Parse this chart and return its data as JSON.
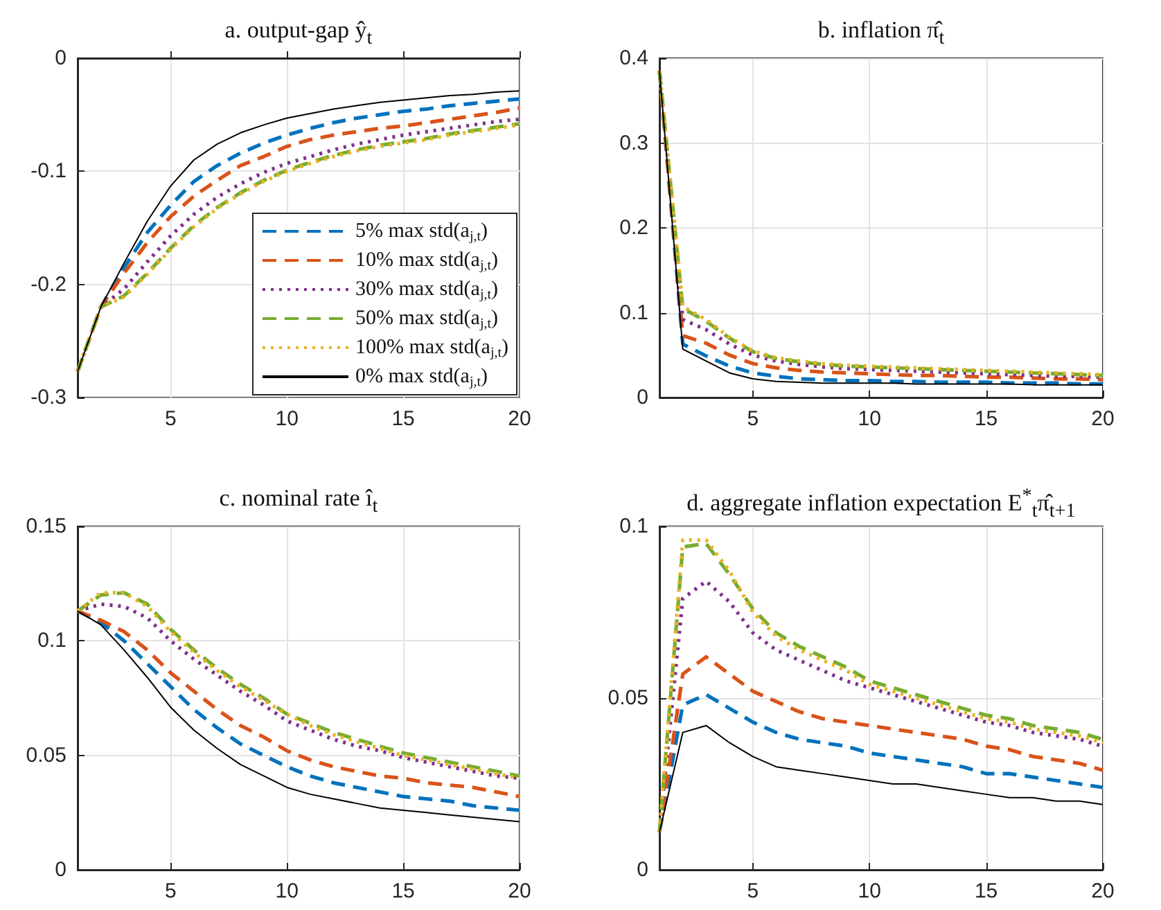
{
  "chart_data": [
    {
      "type": "line",
      "title": "a. output-gap ŷ$_{t}$",
      "x": [
        1,
        2,
        3,
        4,
        5,
        6,
        7,
        8,
        9,
        10,
        11,
        12,
        13,
        14,
        15,
        16,
        17,
        18,
        19,
        20
      ],
      "xlim": [
        1,
        20
      ],
      "xticks": [
        5,
        10,
        15,
        20
      ],
      "ylim": [
        -0.3,
        0
      ],
      "yticks": [
        -0.3,
        -0.2,
        -0.1,
        0
      ],
      "grid": true,
      "legend": "bottom right",
      "series": [
        {
          "name": "5% max std(a$_{j,t}$)",
          "color": "#0072bd",
          "line_style": "dashed",
          "values": [
            -0.277,
            -0.22,
            -0.185,
            -0.154,
            -0.13,
            -0.109,
            -0.095,
            -0.084,
            -0.075,
            -0.068,
            -0.062,
            -0.057,
            -0.053,
            -0.05,
            -0.047,
            -0.045,
            -0.042,
            -0.04,
            -0.038,
            -0.036
          ]
        },
        {
          "name": "10% max std(a$_{j,t}$)",
          "color": "#d95319",
          "line_style": "dashed",
          "values": [
            -0.277,
            -0.22,
            -0.19,
            -0.163,
            -0.14,
            -0.122,
            -0.108,
            -0.095,
            -0.087,
            -0.078,
            -0.072,
            -0.068,
            -0.065,
            -0.062,
            -0.06,
            -0.057,
            -0.054,
            -0.051,
            -0.048,
            -0.044
          ]
        },
        {
          "name": "30% max std(a$_{j,t}$)",
          "color": "#7e2f8e",
          "line_style": "dotted",
          "values": [
            -0.277,
            -0.22,
            -0.204,
            -0.18,
            -0.157,
            -0.138,
            -0.123,
            -0.111,
            -0.101,
            -0.093,
            -0.087,
            -0.081,
            -0.076,
            -0.072,
            -0.068,
            -0.065,
            -0.062,
            -0.059,
            -0.056,
            -0.054
          ]
        },
        {
          "name": "50% max std(a$_{j,t}$)",
          "color": "#77ac30",
          "line_style": "dashed",
          "values": [
            -0.277,
            -0.22,
            -0.21,
            -0.19,
            -0.168,
            -0.148,
            -0.132,
            -0.119,
            -0.108,
            -0.099,
            -0.092,
            -0.086,
            -0.081,
            -0.077,
            -0.074,
            -0.071,
            -0.067,
            -0.064,
            -0.061,
            -0.058
          ]
        },
        {
          "name": "100% max std(a$_{j,t}$)",
          "color": "#edb120",
          "line_style": "dotted",
          "values": [
            -0.277,
            -0.22,
            -0.211,
            -0.191,
            -0.169,
            -0.149,
            -0.133,
            -0.12,
            -0.109,
            -0.1,
            -0.093,
            -0.087,
            -0.082,
            -0.078,
            -0.075,
            -0.072,
            -0.068,
            -0.065,
            -0.062,
            -0.059
          ]
        },
        {
          "name": "0% max std(a$_{j,t}$)",
          "color": "#000000",
          "line_style": "solid",
          "values": [
            -0.277,
            -0.22,
            -0.181,
            -0.144,
            -0.113,
            -0.09,
            -0.076,
            -0.066,
            -0.059,
            -0.053,
            -0.049,
            -0.045,
            -0.042,
            -0.039,
            -0.037,
            -0.035,
            -0.033,
            -0.032,
            -0.03,
            -0.029
          ]
        }
      ]
    },
    {
      "type": "line",
      "title": "b. inflation π̂$_{t}$",
      "x": [
        1,
        2,
        3,
        4,
        5,
        6,
        7,
        8,
        9,
        10,
        11,
        12,
        13,
        14,
        15,
        16,
        17,
        18,
        19,
        20
      ],
      "xlim": [
        1,
        20
      ],
      "xticks": [
        5,
        10,
        15,
        20
      ],
      "ylim": [
        0,
        0.4
      ],
      "yticks": [
        0,
        0.1,
        0.2,
        0.3,
        0.4
      ],
      "grid": true,
      "series": [
        {
          "color": "#0072bd",
          "line_style": "dashed",
          "values": [
            0.385,
            0.063,
            0.049,
            0.037,
            0.029,
            0.025,
            0.022,
            0.021,
            0.02,
            0.02,
            0.019,
            0.019,
            0.018,
            0.018,
            0.018,
            0.017,
            0.017,
            0.017,
            0.016,
            0.016
          ]
        },
        {
          "color": "#d95319",
          "line_style": "dashed",
          "values": [
            0.385,
            0.073,
            0.064,
            0.05,
            0.04,
            0.035,
            0.032,
            0.03,
            0.029,
            0.028,
            0.027,
            0.026,
            0.026,
            0.025,
            0.024,
            0.024,
            0.023,
            0.022,
            0.022,
            0.021
          ]
        },
        {
          "color": "#7e2f8e",
          "line_style": "dotted",
          "values": [
            0.385,
            0.092,
            0.08,
            0.063,
            0.05,
            0.043,
            0.039,
            0.036,
            0.034,
            0.033,
            0.032,
            0.031,
            0.03,
            0.029,
            0.028,
            0.027,
            0.026,
            0.025,
            0.025,
            0.024
          ]
        },
        {
          "color": "#77ac30",
          "line_style": "dashed",
          "values": [
            0.385,
            0.105,
            0.09,
            0.07,
            0.054,
            0.046,
            0.042,
            0.039,
            0.037,
            0.036,
            0.035,
            0.034,
            0.033,
            0.032,
            0.031,
            0.03,
            0.029,
            0.028,
            0.027,
            0.026
          ]
        },
        {
          "color": "#edb120",
          "line_style": "dotted",
          "values": [
            0.385,
            0.107,
            0.092,
            0.071,
            0.055,
            0.047,
            0.043,
            0.04,
            0.038,
            0.037,
            0.036,
            0.035,
            0.034,
            0.033,
            0.032,
            0.031,
            0.03,
            0.029,
            0.028,
            0.027
          ]
        },
        {
          "color": "#000000",
          "line_style": "solid",
          "values": [
            0.385,
            0.057,
            0.043,
            0.029,
            0.022,
            0.019,
            0.018,
            0.017,
            0.017,
            0.017,
            0.017,
            0.016,
            0.016,
            0.016,
            0.016,
            0.016,
            0.015,
            0.015,
            0.015,
            0.015
          ]
        }
      ]
    },
    {
      "type": "line",
      "title": "c. nominal rate î$_{t}$",
      "x": [
        1,
        2,
        3,
        4,
        5,
        6,
        7,
        8,
        9,
        10,
        11,
        12,
        13,
        14,
        15,
        16,
        17,
        18,
        19,
        20
      ],
      "xlim": [
        1,
        20
      ],
      "xticks": [
        5,
        10,
        15,
        20
      ],
      "ylim": [
        0,
        0.15
      ],
      "yticks": [
        0,
        0.05,
        0.1,
        0.15
      ],
      "grid": true,
      "series": [
        {
          "color": "#0072bd",
          "line_style": "dashed",
          "values": [
            0.113,
            0.108,
            0.1,
            0.09,
            0.08,
            0.07,
            0.062,
            0.055,
            0.05,
            0.045,
            0.041,
            0.038,
            0.036,
            0.034,
            0.032,
            0.031,
            0.03,
            0.028,
            0.027,
            0.026
          ]
        },
        {
          "color": "#d95319",
          "line_style": "dashed",
          "values": [
            0.113,
            0.109,
            0.104,
            0.096,
            0.086,
            0.078,
            0.07,
            0.063,
            0.058,
            0.052,
            0.048,
            0.045,
            0.043,
            0.041,
            0.04,
            0.038,
            0.037,
            0.036,
            0.034,
            0.032
          ]
        },
        {
          "color": "#7e2f8e",
          "line_style": "dotted",
          "values": [
            0.113,
            0.116,
            0.115,
            0.11,
            0.1,
            0.092,
            0.085,
            0.078,
            0.072,
            0.065,
            0.061,
            0.057,
            0.054,
            0.052,
            0.049,
            0.047,
            0.045,
            0.043,
            0.041,
            0.04
          ]
        },
        {
          "color": "#77ac30",
          "line_style": "dashed",
          "values": [
            0.113,
            0.12,
            0.121,
            0.116,
            0.105,
            0.096,
            0.088,
            0.081,
            0.075,
            0.068,
            0.064,
            0.06,
            0.057,
            0.054,
            0.051,
            0.049,
            0.047,
            0.045,
            0.043,
            0.041
          ]
        },
        {
          "color": "#edb120",
          "line_style": "dotted",
          "values": [
            0.113,
            0.121,
            0.121,
            0.115,
            0.104,
            0.095,
            0.087,
            0.08,
            0.074,
            0.068,
            0.063,
            0.059,
            0.056,
            0.053,
            0.05,
            0.048,
            0.046,
            0.044,
            0.042,
            0.04
          ]
        },
        {
          "color": "#000000",
          "line_style": "solid",
          "values": [
            0.113,
            0.107,
            0.096,
            0.084,
            0.071,
            0.061,
            0.053,
            0.046,
            0.041,
            0.036,
            0.033,
            0.031,
            0.029,
            0.027,
            0.026,
            0.025,
            0.024,
            0.023,
            0.022,
            0.021
          ]
        }
      ]
    },
    {
      "type": "line",
      "title": "d. aggregate inflation expectation E$^{*}$$_{t}$π̂$_{t+1}$",
      "x": [
        1,
        2,
        3,
        4,
        5,
        6,
        7,
        8,
        9,
        10,
        11,
        12,
        13,
        14,
        15,
        16,
        17,
        18,
        19,
        20
      ],
      "xlim": [
        1,
        20
      ],
      "xticks": [
        5,
        10,
        15,
        20
      ],
      "ylim": [
        0,
        0.1
      ],
      "yticks": [
        0,
        0.05,
        0.1
      ],
      "grid": true,
      "series": [
        {
          "color": "#0072bd",
          "line_style": "dashed",
          "values": [
            0.011,
            0.048,
            0.051,
            0.047,
            0.043,
            0.04,
            0.038,
            0.037,
            0.036,
            0.034,
            0.033,
            0.032,
            0.031,
            0.03,
            0.028,
            0.028,
            0.027,
            0.026,
            0.025,
            0.024
          ]
        },
        {
          "color": "#d95319",
          "line_style": "dashed",
          "values": [
            0.011,
            0.057,
            0.062,
            0.057,
            0.052,
            0.049,
            0.046,
            0.044,
            0.043,
            0.042,
            0.041,
            0.04,
            0.039,
            0.038,
            0.036,
            0.035,
            0.033,
            0.032,
            0.031,
            0.029
          ]
        },
        {
          "color": "#7e2f8e",
          "line_style": "dotted",
          "values": [
            0.011,
            0.079,
            0.084,
            0.078,
            0.069,
            0.064,
            0.061,
            0.058,
            0.055,
            0.053,
            0.051,
            0.049,
            0.047,
            0.045,
            0.043,
            0.042,
            0.04,
            0.039,
            0.038,
            0.036
          ]
        },
        {
          "color": "#77ac30",
          "line_style": "dashed",
          "values": [
            0.011,
            0.094,
            0.095,
            0.086,
            0.076,
            0.069,
            0.065,
            0.062,
            0.059,
            0.055,
            0.053,
            0.051,
            0.049,
            0.047,
            0.045,
            0.044,
            0.042,
            0.041,
            0.04,
            0.038
          ]
        },
        {
          "color": "#edb120",
          "line_style": "dotted",
          "values": [
            0.011,
            0.096,
            0.096,
            0.087,
            0.075,
            0.068,
            0.064,
            0.061,
            0.058,
            0.054,
            0.052,
            0.05,
            0.048,
            0.046,
            0.044,
            0.043,
            0.041,
            0.04,
            0.039,
            0.037
          ]
        },
        {
          "color": "#000000",
          "line_style": "solid",
          "values": [
            0.011,
            0.04,
            0.042,
            0.037,
            0.033,
            0.03,
            0.029,
            0.028,
            0.027,
            0.026,
            0.025,
            0.025,
            0.024,
            0.023,
            0.022,
            0.021,
            0.021,
            0.02,
            0.02,
            0.019
          ]
        }
      ]
    }
  ]
}
